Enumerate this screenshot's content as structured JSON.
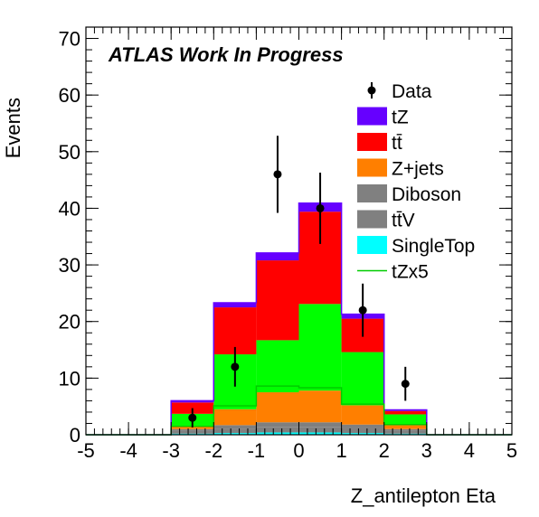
{
  "chart_data": {
    "type": "bar",
    "annotation": "ATLAS Work In Progress",
    "xlabel": "Z_antilepton Eta",
    "ylabel": "Events",
    "xlim": [
      -5,
      5
    ],
    "ylim": [
      0,
      72
    ],
    "x_ticks": [
      "-5",
      "-4",
      "-3",
      "-2",
      "-1",
      "0",
      "1",
      "2",
      "3",
      "4",
      "5"
    ],
    "y_ticks": [
      "0",
      "10",
      "20",
      "30",
      "40",
      "50",
      "60",
      "70"
    ],
    "y_tick_values": [
      0,
      10,
      20,
      30,
      40,
      50,
      60,
      70
    ],
    "bin_edges": [
      -5,
      -4,
      -3,
      -2,
      -1,
      0,
      1,
      2,
      3,
      4,
      5
    ],
    "stack_order_bottom_to_top": [
      "SingleTop",
      "ttV",
      "Diboson",
      "Z+jets",
      "tZx5",
      "tt",
      "tZ"
    ],
    "stacked_series": [
      {
        "name": "SingleTop",
        "color": "#00ffff",
        "values": [
          0,
          0,
          0.2,
          0.3,
          0.4,
          0.4,
          0.3,
          0.2,
          0,
          0
        ]
      },
      {
        "name": "ttV",
        "color": "#808080",
        "values": [
          0,
          0,
          0.5,
          0.8,
          1.0,
          1.0,
          0.9,
          0.5,
          0,
          0
        ]
      },
      {
        "name": "Diboson",
        "color": "#7f7f7f",
        "values": [
          0,
          0,
          0.3,
          0.6,
          0.8,
          0.8,
          0.6,
          0.3,
          0,
          0
        ]
      },
      {
        "name": "Z+jets",
        "color": "#ff7f00",
        "values": [
          0,
          0,
          0.6,
          2.8,
          5.3,
          5.6,
          3.4,
          0.8,
          0,
          0
        ]
      },
      {
        "name": "tZx5",
        "color": "#00ff00",
        "values": [
          0,
          0,
          2.1,
          9.7,
          9.2,
          15.3,
          9.4,
          1.8,
          0,
          0
        ]
      },
      {
        "name": "tt",
        "color": "#ff0000",
        "values": [
          0,
          0,
          2.0,
          8.3,
          14.1,
          16.3,
          5.9,
          0.6,
          0,
          0
        ]
      },
      {
        "name": "tZ",
        "color": "#6600ff",
        "values": [
          0,
          0,
          0.3,
          0.8,
          1.3,
          1.5,
          0.8,
          0.2,
          0,
          0
        ]
      }
    ],
    "overlay_line": {
      "name": "tZx5",
      "color": "#00cc00",
      "values": [
        0,
        0,
        1.5,
        5.1,
        8.6,
        8.3,
        5.4,
        1.8,
        0,
        0
      ]
    },
    "data": {
      "name": "Data",
      "x": [
        -2.5,
        -1.5,
        -0.5,
        0.5,
        1.5,
        2.5
      ],
      "y": [
        3,
        12,
        46,
        40,
        22,
        9
      ],
      "yerr": [
        1.7,
        3.5,
        6.8,
        6.3,
        4.7,
        3.0
      ]
    },
    "legend": {
      "placement": "top-right",
      "entries": [
        {
          "label": "Data",
          "marker": "point",
          "color": "#000000"
        },
        {
          "label": "tZ",
          "marker": "box",
          "color": "#6600ff"
        },
        {
          "label": "tt̄",
          "marker": "box",
          "color": "#ff0000"
        },
        {
          "label": "Z+jets",
          "marker": "box",
          "color": "#ff7f00"
        },
        {
          "label": "Diboson",
          "marker": "box",
          "color": "#808080"
        },
        {
          "label": "tt̄V",
          "marker": "box",
          "color": "#808080"
        },
        {
          "label": "SingleTop",
          "marker": "box",
          "color": "#00ffff"
        },
        {
          "label": "tZx5",
          "marker": "line",
          "color": "#00cc00"
        }
      ]
    }
  }
}
